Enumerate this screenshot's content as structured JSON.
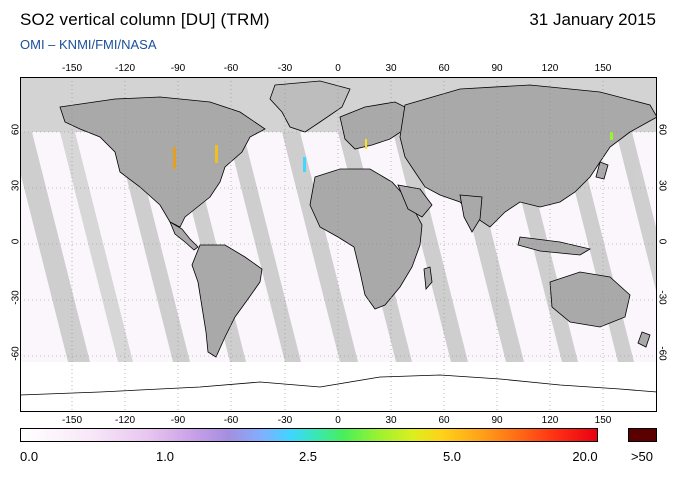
{
  "header": {
    "title": "SO2 vertical column [DU] (TRM)",
    "date": "31 January 2015",
    "credit": "OMI  –  KNMI/FMI/NASA"
  },
  "map": {
    "lon_ticks": [
      "-150",
      "-120",
      "-90",
      "-60",
      "-30",
      "0",
      "30",
      "60",
      "90",
      "120",
      "150"
    ],
    "lat_ticks": [
      "60",
      "30",
      "0",
      "-30",
      "-60"
    ],
    "colors": {
      "ocean_background": "#ffffff",
      "no_data_polar": "#d3d3d3",
      "orbit_swath_gap": "#c8c8c8",
      "dark_swath": "#a6a6a6",
      "coastline": "#000000",
      "grid_dots": "#9a9a9a"
    }
  },
  "colorbar": {
    "labels": [
      "0.0",
      "1.0",
      "2.5",
      "5.0",
      "20.0",
      ">50"
    ],
    "overflow_color": "#5a0000",
    "unit": "DU"
  }
}
